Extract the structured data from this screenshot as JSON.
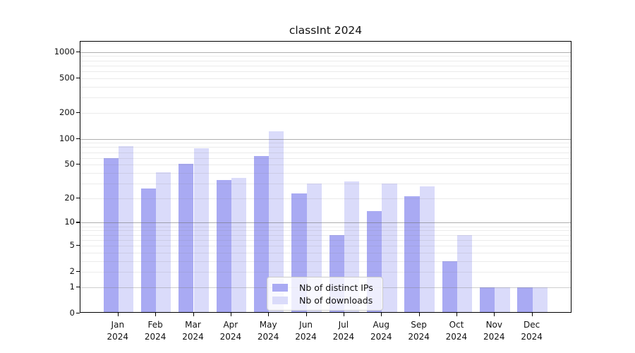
{
  "figure": {
    "title": "classInt 2024"
  },
  "legend": {
    "items": [
      {
        "label": "Nb of distinct IPs",
        "color": "#a9aaf3"
      },
      {
        "label": "Nb of downloads",
        "color": "#dadbfa"
      }
    ]
  },
  "chart_data": {
    "type": "bar",
    "title": "classInt 2024",
    "categories": [
      "Jan 2024",
      "Feb 2024",
      "Mar 2024",
      "Apr 2024",
      "May 2024",
      "Jun 2024",
      "Jul 2024",
      "Aug 2024",
      "Sep 2024",
      "Oct 2024",
      "Nov 2024",
      "Dec 2024"
    ],
    "series": [
      {
        "name": "Nb of distinct IPs",
        "color": "#a9aaf3",
        "values": [
          60,
          26,
          51,
          33,
          63,
          23,
          7,
          14,
          21,
          3,
          1,
          1
        ]
      },
      {
        "name": "Nb of downloads",
        "color": "#dadbfa",
        "values": [
          83,
          41,
          78,
          35,
          123,
          30,
          32,
          30,
          28,
          7,
          1,
          1
        ]
      }
    ],
    "xlabel": "",
    "ylabel": "",
    "yscale": "log1p",
    "y_ticks": [
      0,
      1,
      2,
      5,
      10,
      20,
      50,
      100,
      200,
      500,
      1000
    ],
    "ylim": [
      0,
      1320
    ],
    "grid": {
      "axis": "y",
      "major_at": [
        10,
        100,
        1000
      ],
      "mid_at": [
        1
      ],
      "minor": "2-9 per decade"
    },
    "legend_position": "inside bottom-center",
    "colors": {
      "major_grid": "#b0b0b0",
      "minor_grid": "#e8e8e8",
      "spine": "#000000",
      "background": "#ffffff"
    }
  }
}
